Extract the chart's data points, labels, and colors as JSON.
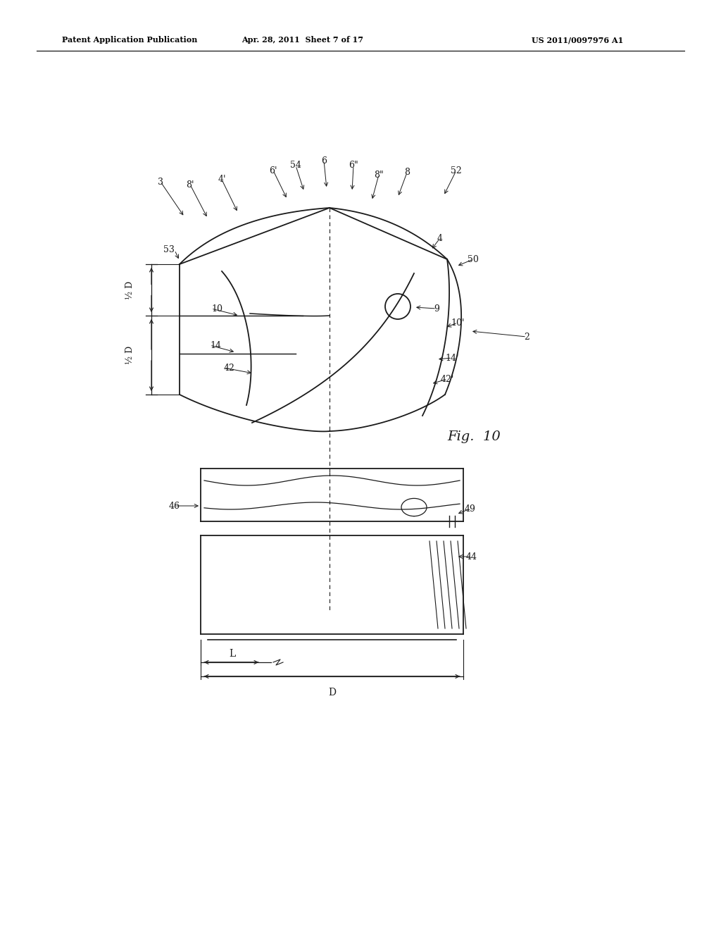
{
  "bg_color": "#ffffff",
  "line_color": "#1a1a1a",
  "header_left": "Patent Application Publication",
  "header_mid": "Apr. 28, 2011  Sheet 7 of 17",
  "header_right": "US 2011/0097976 A1",
  "fig_label": "Fig.  10"
}
